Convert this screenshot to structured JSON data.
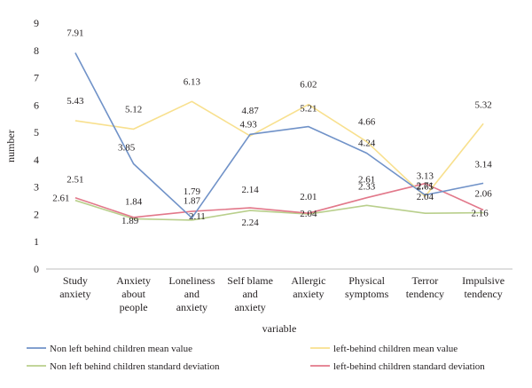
{
  "chart_data": {
    "type": "line",
    "xlabel": "variable",
    "ylabel": "number",
    "ylim": [
      0,
      9
    ],
    "yticks": [
      "0",
      "1",
      "2",
      "3",
      "4",
      "5",
      "6",
      "7",
      "8",
      "9"
    ],
    "grid": false,
    "legend_position": "bottom",
    "categories": [
      [
        "Study",
        "anxiety"
      ],
      [
        "Anxiety",
        "about",
        "people"
      ],
      [
        "Loneliness",
        "and",
        "anxiety"
      ],
      [
        "Self blame",
        "and",
        "anxiety"
      ],
      [
        "Allergic",
        "anxiety"
      ],
      [
        "Physical",
        "symptoms"
      ],
      [
        "Terror",
        "tendency"
      ],
      [
        "Impulsive",
        "tendency"
      ]
    ],
    "series": [
      {
        "name": "Non left behind children mean value",
        "color": "#7092c8",
        "values": [
          7.91,
          3.85,
          1.87,
          4.93,
          5.21,
          4.24,
          2.71,
          3.14
        ],
        "labels": [
          "7.91",
          "3.85",
          "1.87",
          "4.93",
          "5.21",
          "4.24",
          "2.71",
          "3.14"
        ]
      },
      {
        "name": "left-behind children mean value",
        "color": "#f8e08e",
        "values": [
          5.43,
          5.12,
          6.13,
          4.87,
          6.02,
          4.66,
          2.65,
          5.32
        ],
        "labels": [
          "5.43",
          "5.12",
          "6.13",
          "4.87",
          "6.02",
          "4.66",
          "2.65",
          "5.32"
        ]
      },
      {
        "name": "Non left behind children standard deviation",
        "color": "#b9cf8c",
        "values": [
          2.51,
          1.84,
          1.79,
          2.14,
          2.01,
          2.33,
          2.04,
          2.06
        ],
        "labels": [
          "2.51",
          "1.84",
          "1.79",
          "2.14",
          "2.01",
          "2.33",
          "2.04",
          "2.06"
        ]
      },
      {
        "name": "left-behind children standard deviation",
        "color": "#e2788a",
        "values": [
          2.61,
          1.89,
          2.11,
          2.24,
          2.04,
          2.61,
          3.13,
          2.16
        ],
        "labels": [
          "2.61",
          "1.89",
          "2.11",
          "2.24",
          "2.04",
          "2.61",
          "3.13",
          "2.16"
        ]
      }
    ]
  }
}
